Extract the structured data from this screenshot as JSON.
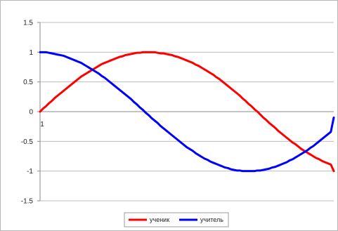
{
  "chart_data": {
    "type": "line",
    "title": "",
    "xlabel": "",
    "ylabel": "",
    "ylim": [
      -1.5,
      1.5
    ],
    "yticks": [
      "1.5",
      "1",
      "0.5",
      "0",
      "-0.5",
      "-1",
      "-1.5"
    ],
    "ytick_values": [
      1.5,
      1,
      0.5,
      0,
      -0.5,
      -1,
      -1.5
    ],
    "xtick_labels": [
      "1"
    ],
    "grid": true,
    "legend_position": "bottom",
    "x": [
      1,
      2,
      3,
      4,
      5,
      6,
      7,
      8,
      9,
      10,
      11,
      12,
      13,
      14,
      15,
      16,
      17,
      18,
      19,
      20,
      21,
      22,
      23,
      24,
      25,
      26,
      27,
      28,
      29,
      30,
      31,
      32,
      33,
      34,
      35,
      36,
      37,
      38,
      39,
      40,
      41,
      42,
      43,
      44,
      45,
      46,
      47,
      48,
      49,
      50,
      51,
      52,
      53,
      54,
      55,
      56,
      57,
      58,
      59,
      60,
      61,
      62,
      63,
      64,
      65,
      66,
      67,
      68,
      69,
      70,
      71,
      72,
      73,
      74,
      75,
      76,
      77,
      78,
      79,
      80,
      81,
      82,
      83,
      84,
      85,
      86,
      87,
      88,
      89,
      90,
      91,
      92,
      93,
      94,
      95,
      96,
      97,
      98,
      99,
      100,
      101
    ],
    "series": [
      {
        "name": "ученик",
        "color": "#ff0000",
        "values": [
          0,
          0.05,
          0.09,
          0.14,
          0.18,
          0.23,
          0.27,
          0.31,
          0.35,
          0.39,
          0.43,
          0.47,
          0.51,
          0.55,
          0.59,
          0.62,
          0.65,
          0.68,
          0.71,
          0.74,
          0.77,
          0.8,
          0.82,
          0.84,
          0.86,
          0.88,
          0.9,
          0.92,
          0.93,
          0.95,
          0.96,
          0.97,
          0.98,
          0.99,
          0.99,
          1,
          1,
          1,
          1,
          1,
          0.99,
          0.98,
          0.98,
          0.97,
          0.96,
          0.95,
          0.93,
          0.92,
          0.9,
          0.88,
          0.86,
          0.84,
          0.82,
          0.79,
          0.77,
          0.74,
          0.71,
          0.68,
          0.65,
          0.62,
          0.58,
          0.55,
          0.51,
          0.47,
          0.43,
          0.39,
          0.35,
          0.31,
          0.27,
          0.22,
          0.18,
          0.13,
          0.09,
          0.04,
          0,
          -0.05,
          -0.1,
          -0.14,
          -0.19,
          -0.23,
          -0.27,
          -0.32,
          -0.36,
          -0.4,
          -0.44,
          -0.48,
          -0.52,
          -0.55,
          -0.59,
          -0.63,
          -0.66,
          -0.69,
          -0.72,
          -0.75,
          -0.78,
          -0.8,
          -0.83,
          -0.85,
          -0.87,
          -0.89,
          -1
        ]
      },
      {
        "name": "учитель",
        "color": "#0000ff",
        "values": [
          1,
          1,
          1,
          0.99,
          0.98,
          0.97,
          0.96,
          0.95,
          0.94,
          0.92,
          0.9,
          0.88,
          0.86,
          0.84,
          0.82,
          0.79,
          0.76,
          0.73,
          0.7,
          0.67,
          0.64,
          0.6,
          0.57,
          0.53,
          0.49,
          0.45,
          0.41,
          0.37,
          0.33,
          0.29,
          0.25,
          0.21,
          0.16,
          0.12,
          0.07,
          0.03,
          -0.02,
          -0.06,
          -0.11,
          -0.15,
          -0.19,
          -0.24,
          -0.28,
          -0.32,
          -0.36,
          -0.4,
          -0.44,
          -0.48,
          -0.52,
          -0.56,
          -0.6,
          -0.63,
          -0.66,
          -0.7,
          -0.73,
          -0.76,
          -0.79,
          -0.81,
          -0.84,
          -0.86,
          -0.88,
          -0.9,
          -0.92,
          -0.94,
          -0.95,
          -0.97,
          -0.98,
          -0.99,
          -0.99,
          -1,
          -1,
          -1,
          -1,
          -1,
          -0.99,
          -0.99,
          -0.98,
          -0.97,
          -0.96,
          -0.94,
          -0.93,
          -0.91,
          -0.89,
          -0.87,
          -0.85,
          -0.82,
          -0.8,
          -0.77,
          -0.74,
          -0.71,
          -0.68,
          -0.65,
          -0.61,
          -0.58,
          -0.54,
          -0.5,
          -0.46,
          -0.42,
          -0.38,
          -0.34,
          -0.1
        ]
      }
    ]
  }
}
